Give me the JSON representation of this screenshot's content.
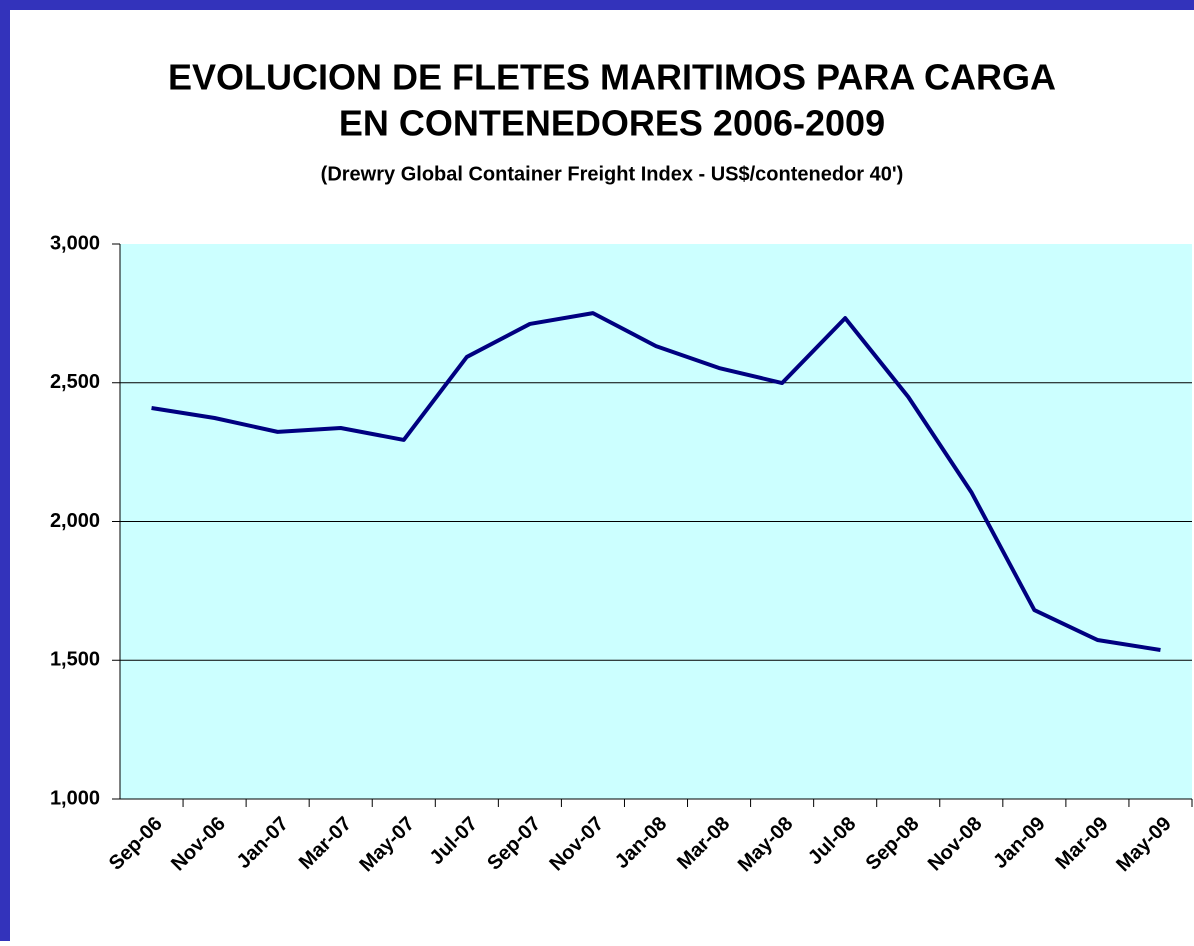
{
  "chart_data": {
    "type": "line",
    "title": [
      "EVOLUCION DE FLETES MARITIMOS PARA CARGA",
      "EN CONTENEDORES 2006-2009"
    ],
    "subtitle": "(Drewry Global Container Freight Index - US$/contenedor 40')",
    "categories": [
      "Sep-06",
      "Nov-06",
      "Jan-07",
      "Mar-07",
      "May-07",
      "Jul-07",
      "Sep-07",
      "Nov-07",
      "Jan-08",
      "Mar-08",
      "May-08",
      "Jul-08",
      "Sep-08",
      "Nov-08",
      "Jan-09",
      "Mar-09",
      "May-09"
    ],
    "series": [
      {
        "color": "#000080",
        "values": [
          2409,
          2373,
          2323,
          2337,
          2294,
          2593,
          2712,
          2751,
          2632,
          2553,
          2499,
          2733,
          2449,
          2106,
          1681,
          1573,
          1537
        ]
      }
    ],
    "ylim": [
      1000,
      3000
    ],
    "yticks": [
      {
        "value": 1000,
        "label": "1,000"
      },
      {
        "value": 1500,
        "label": "1,500"
      },
      {
        "value": 2000,
        "label": "2,000"
      },
      {
        "value": 2500,
        "label": "2,500"
      },
      {
        "value": 3000,
        "label": "3,000"
      }
    ],
    "grid": true
  }
}
